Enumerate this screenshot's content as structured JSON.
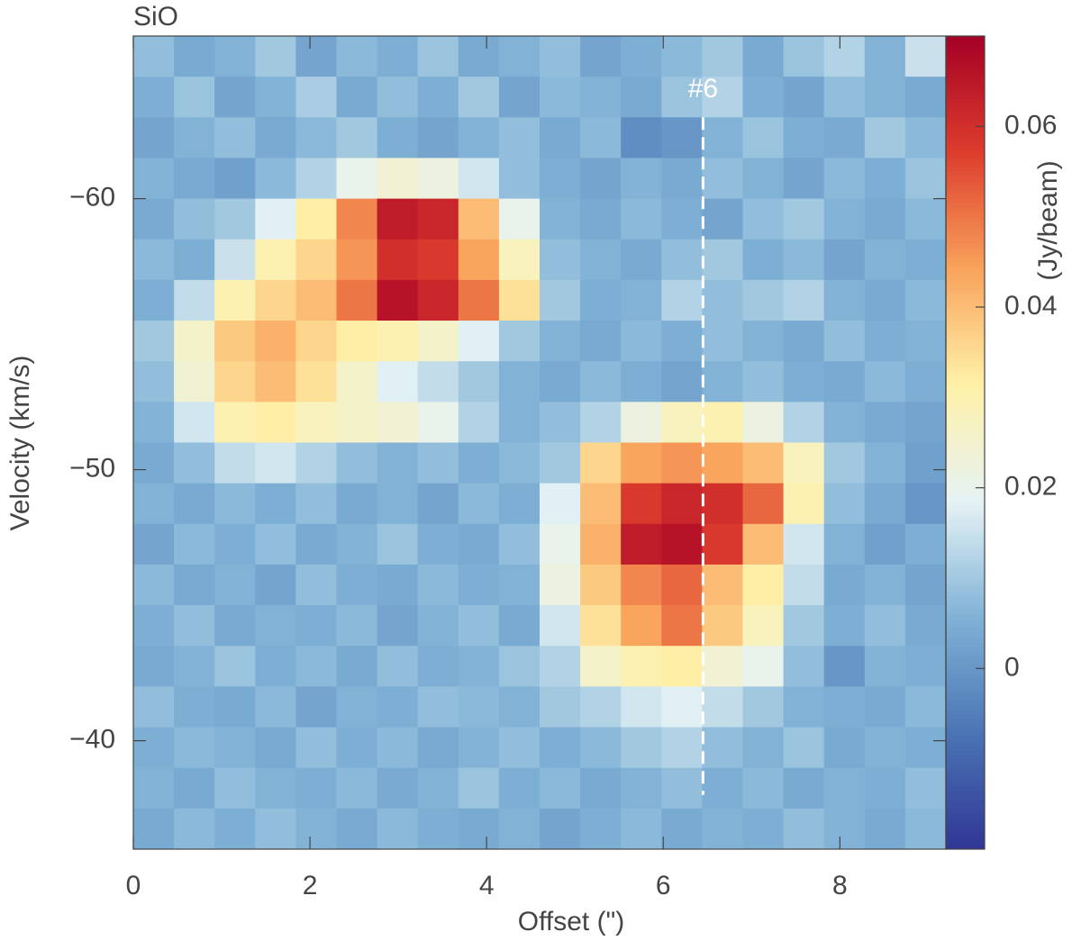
{
  "chart_data": {
    "type": "heatmap",
    "title": "SiO",
    "x_label": "Offset (\")",
    "y_label": "Velocity (km/s)",
    "colorbar_label": "(Jy/beam)",
    "xlim": [
      0,
      9.2
    ],
    "xticks": [
      0,
      2,
      4,
      6,
      8
    ],
    "ylim": [
      -66,
      -36
    ],
    "yticks": [
      {
        "value": -60,
        "label": "−60"
      },
      {
        "value": -50,
        "label": "−50"
      },
      {
        "value": -40,
        "label": "−40"
      }
    ],
    "clim": [
      -0.02,
      0.07
    ],
    "cticks": [
      0,
      0.02,
      0.04,
      0.06
    ],
    "colormap": [
      "#313695",
      "#4a74b4",
      "#80b2d6",
      "#e6f3f5",
      "#fff1a8",
      "#f9a35c",
      "#dd3d2d",
      "#a50026"
    ],
    "x": [
      0.23,
      0.69,
      1.15,
      1.61,
      2.07,
      2.53,
      2.99,
      3.45,
      3.91,
      4.37,
      4.83,
      5.29,
      5.75,
      6.21,
      6.67,
      7.13,
      7.59,
      8.05,
      8.51,
      8.97
    ],
    "y": [
      -65.25,
      -63.75,
      -62.25,
      -60.75,
      -59.25,
      -57.75,
      -56.25,
      -54.75,
      -53.25,
      -51.75,
      -50.25,
      -48.75,
      -47.25,
      -45.75,
      -44.25,
      -42.75,
      -41.25,
      -39.75,
      -38.25,
      -36.75
    ],
    "z": [
      [
        0.008,
        0.004,
        0.006,
        0.01,
        0.003,
        0.007,
        0.005,
        0.009,
        0.004,
        0.006,
        0.008,
        0.003,
        0.005,
        0.007,
        0.01,
        0.004,
        0.009,
        0.012,
        0.006,
        0.015
      ],
      [
        0.005,
        0.009,
        0.003,
        0.006,
        0.011,
        0.004,
        0.008,
        0.005,
        0.01,
        0.003,
        0.007,
        0.006,
        0.004,
        0.009,
        0.012,
        0.005,
        0.003,
        0.008,
        0.006,
        0.004
      ],
      [
        0.003,
        0.006,
        0.008,
        0.004,
        0.007,
        0.01,
        0.005,
        0.003,
        0.006,
        0.008,
        0.004,
        0.007,
        -0.002,
        0.0,
        0.006,
        0.009,
        0.005,
        0.004,
        0.01,
        0.007
      ],
      [
        0.006,
        0.004,
        0.002,
        0.007,
        0.012,
        0.02,
        0.024,
        0.022,
        0.016,
        0.008,
        0.005,
        0.003,
        0.006,
        0.004,
        0.008,
        0.006,
        0.003,
        0.007,
        0.005,
        0.009
      ],
      [
        0.004,
        0.008,
        0.01,
        0.018,
        0.032,
        0.048,
        0.064,
        0.062,
        0.04,
        0.02,
        0.006,
        0.004,
        0.007,
        0.005,
        0.003,
        0.008,
        0.01,
        0.006,
        0.004,
        0.007
      ],
      [
        0.007,
        0.005,
        0.015,
        0.03,
        0.036,
        0.046,
        0.06,
        0.058,
        0.044,
        0.028,
        0.008,
        0.006,
        0.004,
        0.008,
        0.01,
        0.005,
        0.007,
        0.003,
        0.006,
        0.005
      ],
      [
        0.005,
        0.014,
        0.03,
        0.036,
        0.04,
        0.05,
        0.066,
        0.062,
        0.05,
        0.034,
        0.01,
        0.005,
        0.006,
        0.012,
        0.008,
        0.01,
        0.012,
        0.006,
        0.004,
        0.007
      ],
      [
        0.01,
        0.026,
        0.038,
        0.042,
        0.036,
        0.032,
        0.03,
        0.026,
        0.018,
        0.01,
        0.006,
        0.004,
        0.007,
        0.005,
        0.008,
        0.006,
        0.004,
        0.008,
        0.005,
        0.006
      ],
      [
        0.008,
        0.024,
        0.036,
        0.04,
        0.034,
        0.026,
        0.018,
        0.014,
        0.01,
        0.006,
        0.004,
        0.007,
        0.005,
        0.003,
        0.006,
        0.008,
        0.005,
        0.004,
        0.007,
        0.005
      ],
      [
        0.006,
        0.016,
        0.03,
        0.032,
        0.028,
        0.026,
        0.024,
        0.02,
        0.012,
        0.006,
        0.008,
        0.012,
        0.022,
        0.028,
        0.03,
        0.022,
        0.012,
        0.006,
        0.004,
        0.003
      ],
      [
        0.004,
        0.008,
        0.014,
        0.016,
        0.012,
        0.008,
        0.006,
        0.008,
        0.005,
        0.007,
        0.01,
        0.036,
        0.044,
        0.046,
        0.044,
        0.04,
        0.028,
        0.01,
        0.006,
        0.002
      ],
      [
        0.006,
        0.004,
        0.007,
        0.005,
        0.008,
        0.004,
        0.006,
        0.003,
        0.007,
        0.005,
        0.018,
        0.04,
        0.058,
        0.062,
        0.06,
        0.052,
        0.03,
        0.008,
        0.004,
        0.0
      ],
      [
        0.003,
        0.007,
        0.005,
        0.008,
        0.004,
        0.006,
        0.009,
        0.005,
        0.004,
        0.008,
        0.02,
        0.042,
        0.064,
        0.066,
        0.058,
        0.04,
        0.016,
        0.006,
        0.002,
        0.005
      ],
      [
        0.007,
        0.004,
        0.006,
        0.003,
        0.008,
        0.005,
        0.004,
        0.007,
        0.005,
        0.006,
        0.022,
        0.038,
        0.048,
        0.052,
        0.04,
        0.032,
        0.014,
        0.004,
        0.006,
        0.003
      ],
      [
        0.005,
        0.008,
        0.004,
        0.006,
        0.005,
        0.007,
        0.003,
        0.006,
        0.008,
        0.004,
        0.016,
        0.034,
        0.044,
        0.05,
        0.038,
        0.028,
        0.01,
        0.005,
        0.008,
        0.004
      ],
      [
        0.004,
        0.006,
        0.009,
        0.005,
        0.007,
        0.004,
        0.008,
        0.005,
        0.006,
        0.009,
        0.012,
        0.026,
        0.03,
        0.032,
        0.024,
        0.02,
        0.008,
        0.0,
        0.006,
        0.005
      ],
      [
        0.008,
        0.005,
        0.004,
        0.007,
        0.003,
        0.006,
        0.005,
        0.008,
        0.007,
        0.006,
        0.01,
        0.012,
        0.016,
        0.018,
        0.014,
        0.01,
        0.006,
        0.005,
        0.004,
        0.007
      ],
      [
        0.005,
        0.007,
        0.006,
        0.004,
        0.008,
        0.005,
        0.007,
        0.004,
        0.006,
        0.008,
        0.005,
        0.007,
        0.01,
        0.012,
        0.008,
        0.006,
        0.009,
        0.004,
        0.006,
        0.005
      ],
      [
        0.006,
        0.004,
        0.008,
        0.006,
        0.005,
        0.007,
        0.004,
        0.006,
        0.009,
        0.005,
        0.007,
        0.004,
        0.006,
        0.008,
        0.005,
        0.007,
        0.004,
        0.006,
        0.005,
        0.008
      ],
      [
        0.004,
        0.007,
        0.005,
        0.008,
        0.006,
        0.004,
        0.007,
        0.005,
        0.004,
        0.006,
        0.003,
        0.005,
        0.007,
        0.004,
        0.006,
        0.005,
        0.008,
        0.006,
        0.004,
        0.007
      ]
    ],
    "annotations": [
      {
        "text": "#6",
        "x": 6.45,
        "y": -64,
        "line": [
          -63,
          -38
        ]
      }
    ]
  }
}
